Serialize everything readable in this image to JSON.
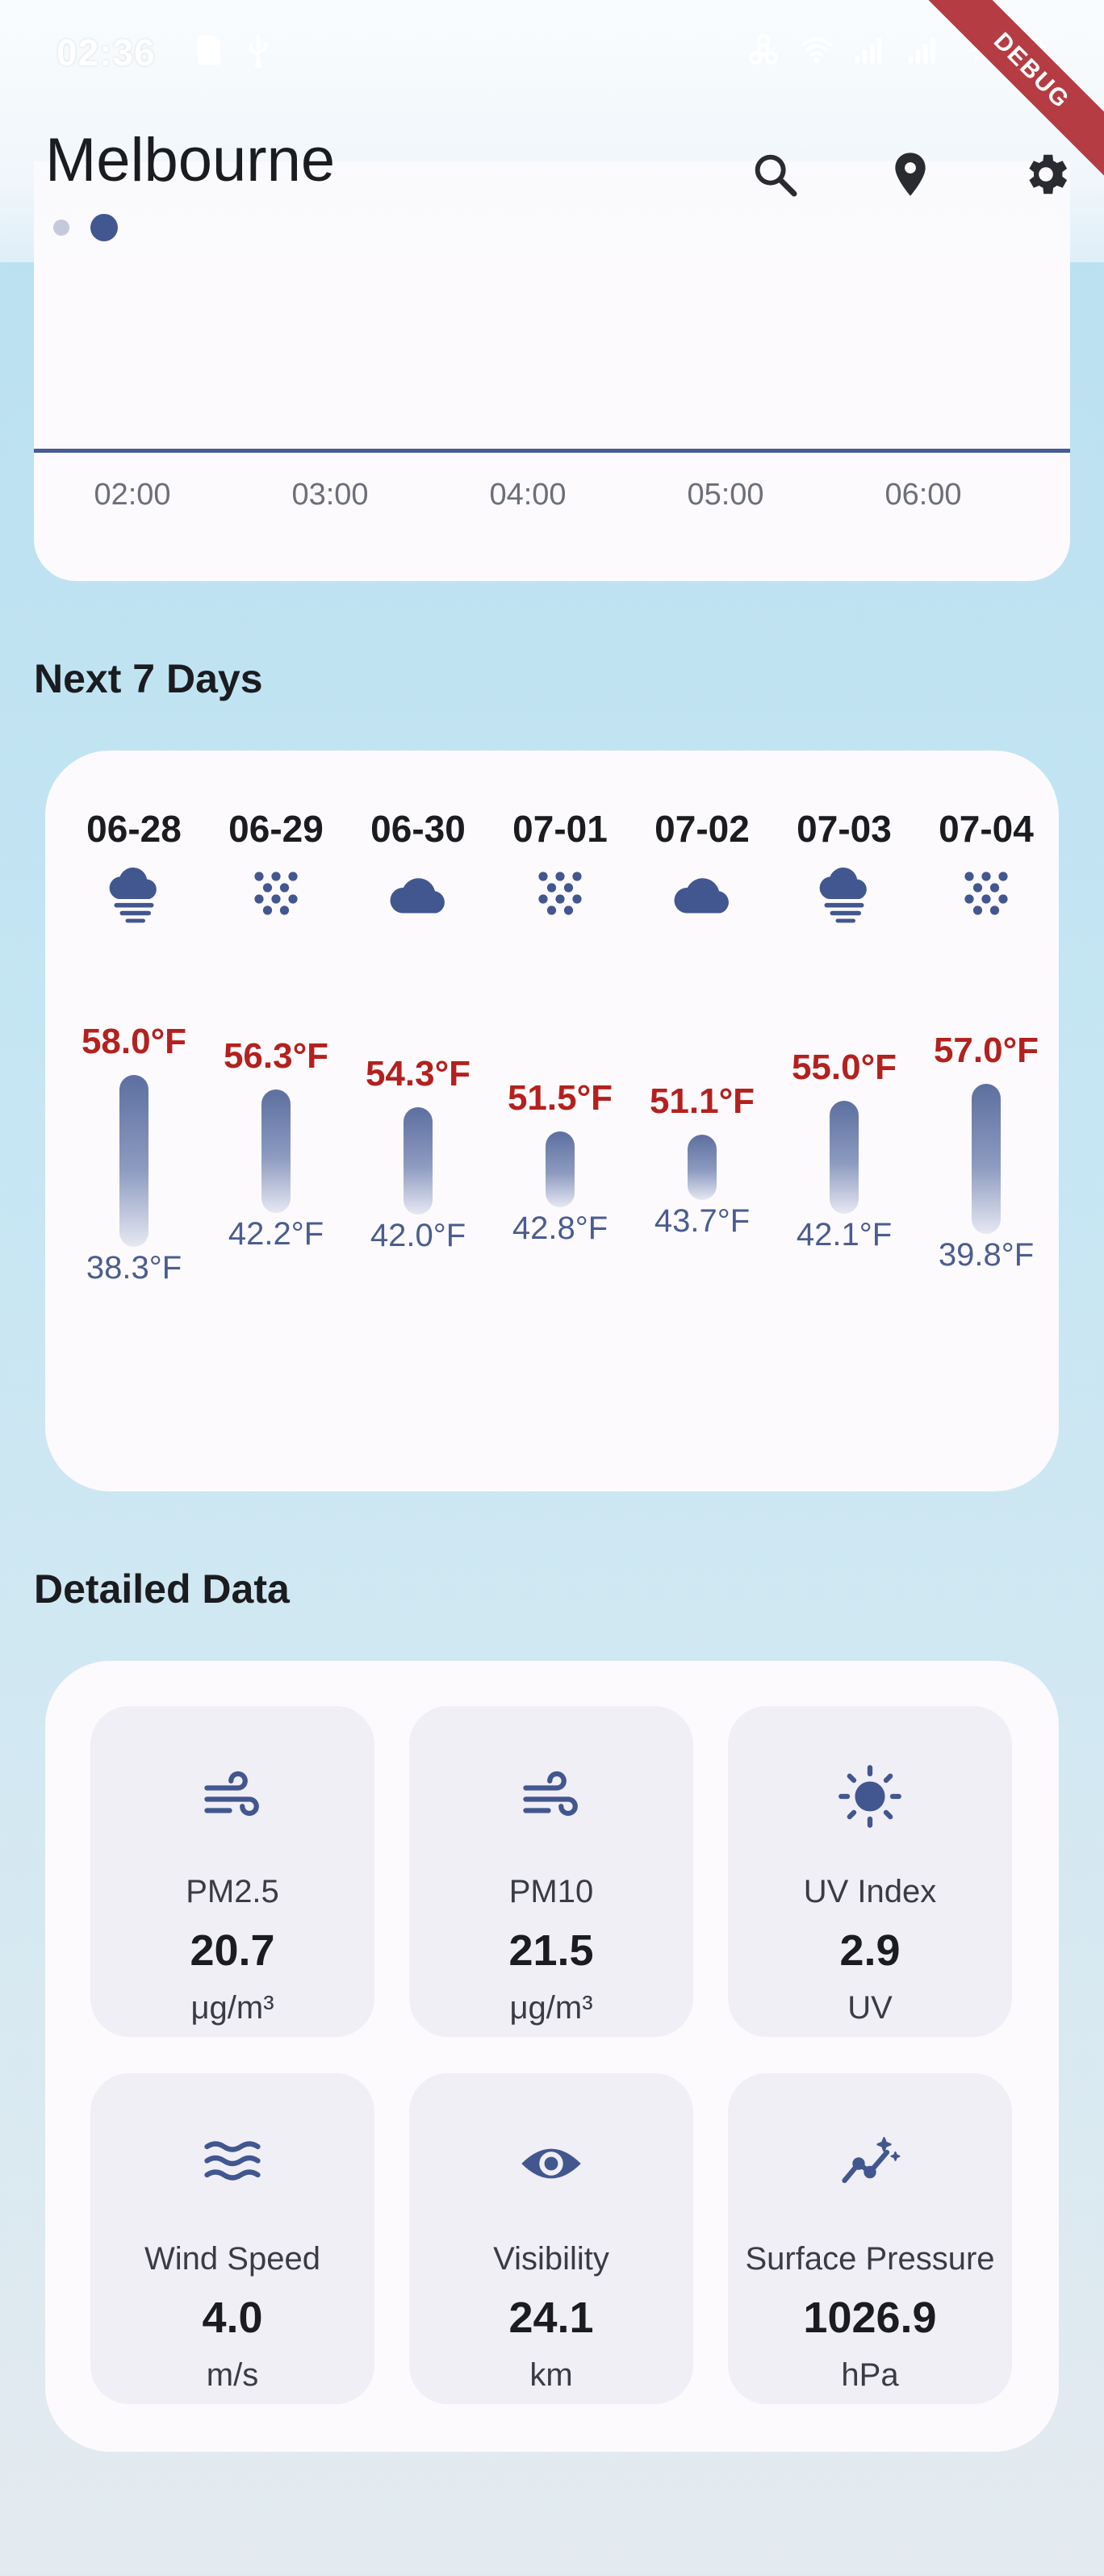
{
  "status_bar": {
    "time": "02:36"
  },
  "header": {
    "city": "Melbourne",
    "debug_label": "DEBUG"
  },
  "hourly": {
    "times": [
      "02:00",
      "03:00",
      "04:00",
      "05:00",
      "06:00"
    ]
  },
  "next_days": {
    "title": "Next 7 Days",
    "days": [
      {
        "date": "06-28",
        "icon": "fog-cloud-icon",
        "high": "58.0°F",
        "low": "38.3°F",
        "high_value": 58.0,
        "low_value": 38.3
      },
      {
        "date": "06-29",
        "icon": "snow-dots-icon",
        "high": "56.3°F",
        "low": "42.2°F",
        "high_value": 56.3,
        "low_value": 42.2
      },
      {
        "date": "06-30",
        "icon": "cloud-icon",
        "high": "54.3°F",
        "low": "42.0°F",
        "high_value": 54.3,
        "low_value": 42.0
      },
      {
        "date": "07-01",
        "icon": "snow-dots-icon",
        "high": "51.5°F",
        "low": "42.8°F",
        "high_value": 51.5,
        "low_value": 42.8
      },
      {
        "date": "07-02",
        "icon": "cloud-icon",
        "high": "51.1°F",
        "low": "43.7°F",
        "high_value": 51.1,
        "low_value": 43.7
      },
      {
        "date": "07-03",
        "icon": "fog-cloud-icon",
        "high": "55.0°F",
        "low": "42.1°F",
        "high_value": 55.0,
        "low_value": 42.1
      },
      {
        "date": "07-04",
        "icon": "snow-dots-icon",
        "high": "57.0°F",
        "low": "39.8°F",
        "high_value": 57.0,
        "low_value": 39.8
      }
    ]
  },
  "detailed": {
    "title": "Detailed Data",
    "tiles": [
      {
        "icon": "wind-icon",
        "label": "PM2.5",
        "value": "20.7",
        "unit": "μg/m³"
      },
      {
        "icon": "wind-icon",
        "label": "PM10",
        "value": "21.5",
        "unit": "μg/m³"
      },
      {
        "icon": "sun-icon",
        "label": "UV Index",
        "value": "2.9",
        "unit": "UV"
      },
      {
        "icon": "waves-icon",
        "label": "Wind Speed",
        "value": "4.0",
        "unit": "m/s"
      },
      {
        "icon": "eye-icon",
        "label": "Visibility",
        "value": "24.1",
        "unit": "km"
      },
      {
        "icon": "pressure-chart-icon",
        "label": "Surface Pressure",
        "value": "1026.9",
        "unit": "hPa"
      }
    ]
  },
  "colors": {
    "accent": "#42578f",
    "high_temp": "#b3211e",
    "low_temp": "#4a5d8f"
  }
}
